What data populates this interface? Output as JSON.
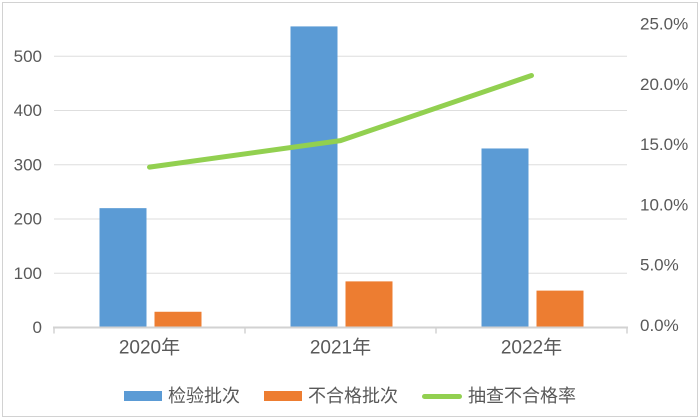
{
  "chart_data": {
    "type": "combo",
    "title": "",
    "categories": [
      "2020年",
      "2021年",
      "2022年"
    ],
    "series": [
      {
        "name": "检验批次",
        "type": "bar",
        "axis": "left",
        "color": "#5B9BD5",
        "values": [
          220,
          555,
          330
        ]
      },
      {
        "name": "不合格批次",
        "type": "bar",
        "axis": "left",
        "color": "#ED7D31",
        "values": [
          29,
          85,
          68
        ]
      },
      {
        "name": "抽查不合格率",
        "type": "line",
        "axis": "right",
        "color": "#92D050",
        "unit": "%",
        "values": [
          13.3,
          15.5,
          20.9
        ]
      }
    ],
    "left_axis": {
      "min": 0,
      "max": 600,
      "tick_values": [
        0,
        100,
        200,
        300,
        400,
        500
      ],
      "tick_labels": [
        "0",
        "100",
        "200",
        "300",
        "400",
        "500"
      ]
    },
    "right_axis": {
      "min": 0,
      "max": 27,
      "tick_values": [
        0,
        5,
        10,
        15,
        20,
        25
      ],
      "tick_labels": [
        "0.0%",
        "5.0%",
        "10.0%",
        "15.0%",
        "20.0%",
        "25.0%"
      ]
    },
    "grid": true,
    "legend_position": "bottom",
    "style_colors": {
      "text": "#595959",
      "gridline": "#DEDEDE",
      "axis_line": "#D2D2D2",
      "border": "#D2D2D2"
    }
  }
}
